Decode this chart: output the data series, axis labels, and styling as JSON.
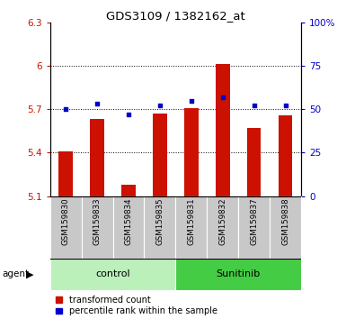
{
  "title": "GDS3109 / 1382162_at",
  "samples": [
    "GSM159830",
    "GSM159833",
    "GSM159834",
    "GSM159835",
    "GSM159831",
    "GSM159832",
    "GSM159837",
    "GSM159838"
  ],
  "red_values": [
    5.41,
    5.63,
    5.18,
    5.67,
    5.71,
    6.01,
    5.57,
    5.66
  ],
  "blue_values": [
    50,
    53,
    47,
    52,
    55,
    57,
    52,
    52
  ],
  "ylim_left": [
    5.1,
    6.3
  ],
  "ylim_right": [
    0,
    100
  ],
  "yticks_left": [
    5.1,
    5.4,
    5.7,
    6.0,
    6.3
  ],
  "yticks_right": [
    0,
    25,
    50,
    75,
    100
  ],
  "ytick_labels_left": [
    "5.1",
    "5.4",
    "5.7",
    "6",
    "6.3"
  ],
  "ytick_labels_right": [
    "0",
    "25",
    "50",
    "75",
    "100%"
  ],
  "groups": [
    {
      "label": "control",
      "indices": [
        0,
        1,
        2,
        3
      ],
      "color": "#bbf0bb"
    },
    {
      "label": "Sunitinib",
      "indices": [
        4,
        5,
        6,
        7
      ],
      "color": "#44cc44"
    }
  ],
  "bar_color": "#cc1100",
  "dot_color": "#0000cc",
  "bar_bottom": 5.1,
  "tick_area_color": "#c8c8c8",
  "agent_label": "agent",
  "legend": [
    "transformed count",
    "percentile rank within the sample"
  ]
}
